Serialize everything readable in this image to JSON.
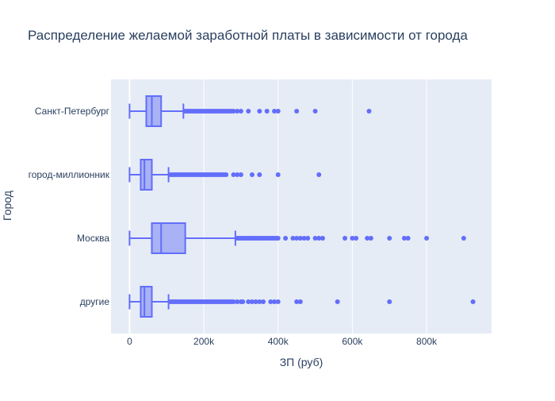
{
  "chart_data": {
    "type": "box",
    "title": "Распределение желаемой заработной платы в зависимости от города",
    "xlabel": "ЗП (руб)",
    "ylabel": "Город",
    "xlim": [
      -50000,
      975000
    ],
    "x_ticks": [
      0,
      200000,
      400000,
      600000,
      800000
    ],
    "x_tick_labels": [
      "0",
      "200k",
      "400k",
      "600k",
      "800k"
    ],
    "grid": true,
    "colors": {
      "box_fill": "#a8b2f4",
      "box_line": "#636efa",
      "plot_bg": "#e5ecf6",
      "grid": "#ffffff",
      "text": "#2a3f5f"
    },
    "categories": [
      "Санкт-Петербург",
      "город-миллионник",
      "Москва",
      "другие"
    ],
    "boxes": [
      {
        "category": "Санкт-Петербург",
        "min": 0,
        "q1": 45000,
        "median": 60000,
        "q3": 85000,
        "upper_fence": 145000,
        "outliers": [
          150000,
          155000,
          160000,
          165000,
          170000,
          175000,
          180000,
          185000,
          190000,
          195000,
          200000,
          205000,
          210000,
          215000,
          220000,
          225000,
          230000,
          235000,
          240000,
          245000,
          250000,
          255000,
          260000,
          265000,
          270000,
          275000,
          280000,
          290000,
          300000,
          320000,
          350000,
          370000,
          390000,
          400000,
          450000,
          500000,
          645000
        ]
      },
      {
        "category": "город-миллионник",
        "min": 0,
        "q1": 30000,
        "median": 40000,
        "q3": 60000,
        "upper_fence": 105000,
        "outliers": [
          110000,
          115000,
          120000,
          125000,
          130000,
          135000,
          140000,
          145000,
          150000,
          155000,
          160000,
          165000,
          170000,
          175000,
          180000,
          185000,
          190000,
          195000,
          200000,
          205000,
          210000,
          215000,
          220000,
          225000,
          230000,
          235000,
          240000,
          245000,
          250000,
          255000,
          260000,
          280000,
          290000,
          300000,
          330000,
          350000,
          400000,
          510000
        ]
      },
      {
        "category": "Москва",
        "min": 0,
        "q1": 60000,
        "median": 85000,
        "q3": 150000,
        "upper_fence": 285000,
        "outliers": [
          290000,
          295000,
          300000,
          305000,
          310000,
          315000,
          320000,
          325000,
          330000,
          335000,
          340000,
          345000,
          350000,
          355000,
          360000,
          365000,
          370000,
          375000,
          380000,
          385000,
          390000,
          395000,
          400000,
          420000,
          440000,
          450000,
          460000,
          470000,
          480000,
          500000,
          510000,
          520000,
          580000,
          600000,
          610000,
          640000,
          650000,
          700000,
          740000,
          750000,
          800000,
          900000
        ]
      },
      {
        "category": "другие",
        "min": 0,
        "q1": 30000,
        "median": 40000,
        "q3": 60000,
        "upper_fence": 105000,
        "outliers": [
          110000,
          115000,
          120000,
          125000,
          130000,
          135000,
          140000,
          145000,
          150000,
          155000,
          160000,
          165000,
          170000,
          175000,
          180000,
          185000,
          190000,
          195000,
          200000,
          205000,
          210000,
          215000,
          220000,
          225000,
          230000,
          235000,
          240000,
          245000,
          250000,
          255000,
          260000,
          265000,
          270000,
          275000,
          280000,
          290000,
          300000,
          305000,
          320000,
          330000,
          340000,
          350000,
          360000,
          380000,
          390000,
          400000,
          450000,
          460000,
          560000,
          700000,
          925000
        ]
      }
    ]
  }
}
